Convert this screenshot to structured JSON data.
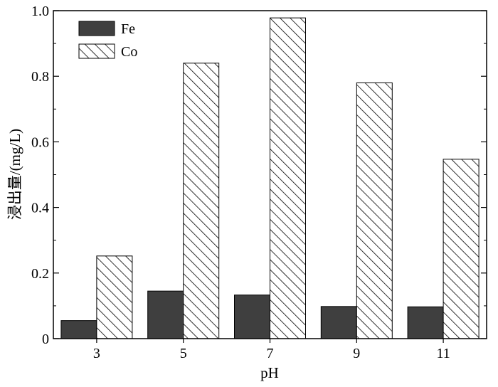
{
  "chart_data": {
    "type": "bar",
    "title": "",
    "xlabel": "pH",
    "ylabel": "浸出量/(mg/L)",
    "categories": [
      "3",
      "5",
      "7",
      "9",
      "11"
    ],
    "series": [
      {
        "name": "Fe",
        "values": [
          0.055,
          0.145,
          0.133,
          0.098,
          0.097
        ],
        "color": "#3f3f3f",
        "pattern": "solid"
      },
      {
        "name": "Co",
        "values": [
          0.252,
          0.84,
          0.978,
          0.78,
          0.547
        ],
        "color": "#ffffff",
        "pattern": "diagonal-hatch"
      }
    ],
    "ylim": [
      0,
      1.0
    ],
    "yticks": [
      "0",
      "0.2",
      "0.4",
      "0.6",
      "0.8",
      "1.0"
    ],
    "grid": false,
    "legend_position": "top-left"
  }
}
